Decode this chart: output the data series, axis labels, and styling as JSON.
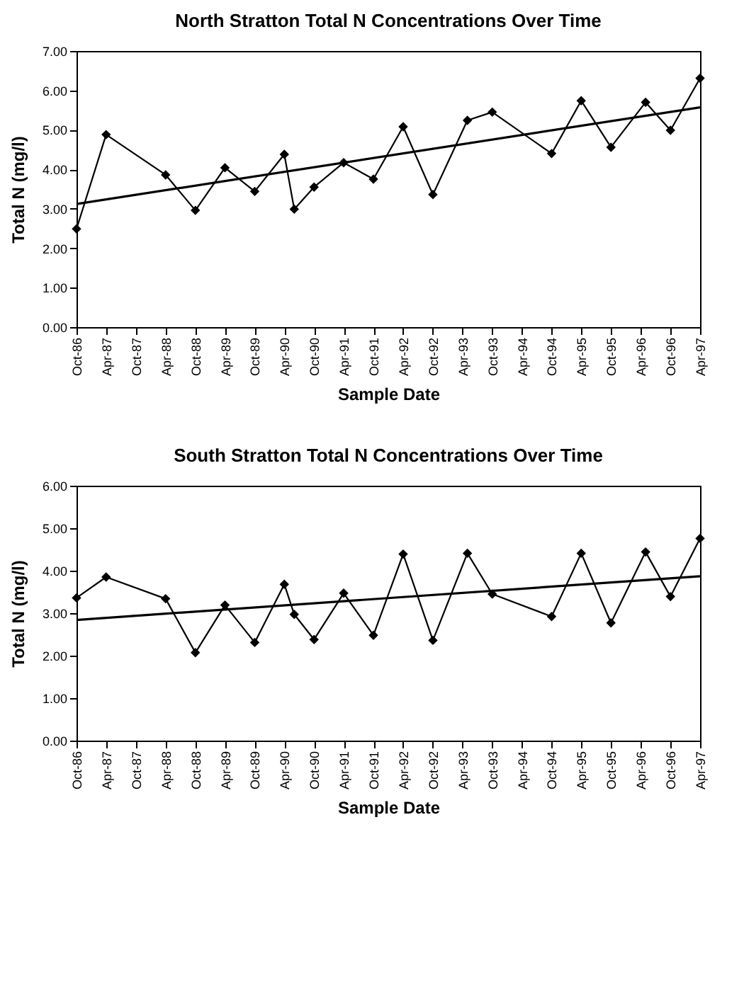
{
  "chart_data": [
    {
      "type": "line",
      "title": "North Stratton Total N Concentrations Over Time",
      "xlabel": "Sample Date",
      "ylabel": "Total N (mg/l)",
      "grid": false,
      "xlim": [
        "1986-10",
        "1997-04"
      ],
      "ylim": [
        0,
        7
      ],
      "yticks": [
        {
          "value": 0,
          "label": "0.00"
        },
        {
          "value": 1,
          "label": "1.00"
        },
        {
          "value": 2,
          "label": "2.00"
        },
        {
          "value": 3,
          "label": "3.00"
        },
        {
          "value": 4,
          "label": "4.00"
        },
        {
          "value": 5,
          "label": "5.00"
        },
        {
          "value": 6,
          "label": "6.00"
        },
        {
          "value": 7,
          "label": "7.00"
        }
      ],
      "xticks": [
        {
          "value": "1986-10",
          "label": "Oct-86"
        },
        {
          "value": "1987-04",
          "label": "Apr-87"
        },
        {
          "value": "1987-10",
          "label": "Oct-87"
        },
        {
          "value": "1988-04",
          "label": "Apr-88"
        },
        {
          "value": "1988-10",
          "label": "Oct-88"
        },
        {
          "value": "1989-04",
          "label": "Apr-89"
        },
        {
          "value": "1989-10",
          "label": "Oct-89"
        },
        {
          "value": "1990-04",
          "label": "Apr-90"
        },
        {
          "value": "1990-10",
          "label": "Oct-90"
        },
        {
          "value": "1991-04",
          "label": "Apr-91"
        },
        {
          "value": "1991-10",
          "label": "Oct-91"
        },
        {
          "value": "1992-04",
          "label": "Apr-92"
        },
        {
          "value": "1992-10",
          "label": "Oct-92"
        },
        {
          "value": "1993-04",
          "label": "Apr-93"
        },
        {
          "value": "1993-10",
          "label": "Oct-93"
        },
        {
          "value": "1994-04",
          "label": "Apr-94"
        },
        {
          "value": "1994-10",
          "label": "Oct-94"
        },
        {
          "value": "1995-04",
          "label": "Apr-95"
        },
        {
          "value": "1995-10",
          "label": "Oct-95"
        },
        {
          "value": "1996-04",
          "label": "Apr-96"
        },
        {
          "value": "1996-10",
          "label": "Oct-96"
        },
        {
          "value": "1997-04",
          "label": "Apr-97"
        }
      ],
      "series": [
        {
          "color": "#000000",
          "marker": "diamond",
          "line_style": "solid",
          "x": [
            "1986-10",
            "1987-04",
            "1988-04",
            "1988-10",
            "1989-04",
            "1989-10",
            "1990-04",
            "1990-06",
            "1990-10",
            "1991-04",
            "1991-10",
            "1992-04",
            "1992-10",
            "1993-05",
            "1993-10",
            "1994-10",
            "1995-04",
            "1995-10",
            "1996-05",
            "1996-10",
            "1997-04"
          ],
          "values": [
            2.49,
            4.88,
            3.86,
            2.96,
            4.04,
            3.44,
            4.38,
            2.99,
            3.55,
            4.17,
            3.75,
            5.08,
            3.36,
            5.24,
            5.45,
            4.4,
            5.74,
            4.56,
            5.7,
            4.99,
            6.31
          ]
        },
        {
          "color": "#000000",
          "marker": "none",
          "line_style": "solid",
          "x": [
            "1986-10",
            "1997-04"
          ],
          "values": [
            3.12,
            5.57
          ]
        }
      ]
    },
    {
      "type": "line",
      "title": "South Stratton Total N Concentrations Over Time",
      "xlabel": "Sample Date",
      "ylabel": "Total N (mg/l)",
      "grid": false,
      "xlim": [
        "1986-10",
        "1997-04"
      ],
      "ylim": [
        0,
        6
      ],
      "yticks": [
        {
          "value": 0,
          "label": "0.00"
        },
        {
          "value": 1,
          "label": "1.00"
        },
        {
          "value": 2,
          "label": "2.00"
        },
        {
          "value": 3,
          "label": "3.00"
        },
        {
          "value": 4,
          "label": "4.00"
        },
        {
          "value": 5,
          "label": "5.00"
        },
        {
          "value": 6,
          "label": "6.00"
        }
      ],
      "xticks": [
        {
          "value": "1986-10",
          "label": "Oct-86"
        },
        {
          "value": "1987-04",
          "label": "Apr-87"
        },
        {
          "value": "1987-10",
          "label": "Oct-87"
        },
        {
          "value": "1988-04",
          "label": "Apr-88"
        },
        {
          "value": "1988-10",
          "label": "Oct-88"
        },
        {
          "value": "1989-04",
          "label": "Apr-89"
        },
        {
          "value": "1989-10",
          "label": "Oct-89"
        },
        {
          "value": "1990-04",
          "label": "Apr-90"
        },
        {
          "value": "1990-10",
          "label": "Oct-90"
        },
        {
          "value": "1991-04",
          "label": "Apr-91"
        },
        {
          "value": "1991-10",
          "label": "Oct-91"
        },
        {
          "value": "1992-04",
          "label": "Apr-92"
        },
        {
          "value": "1992-10",
          "label": "Oct-92"
        },
        {
          "value": "1993-04",
          "label": "Apr-93"
        },
        {
          "value": "1993-10",
          "label": "Oct-93"
        },
        {
          "value": "1994-04",
          "label": "Apr-94"
        },
        {
          "value": "1994-10",
          "label": "Oct-94"
        },
        {
          "value": "1995-04",
          "label": "Apr-95"
        },
        {
          "value": "1995-10",
          "label": "Oct-95"
        },
        {
          "value": "1996-04",
          "label": "Apr-96"
        },
        {
          "value": "1996-10",
          "label": "Oct-96"
        },
        {
          "value": "1997-04",
          "label": "Apr-97"
        }
      ],
      "series": [
        {
          "color": "#000000",
          "marker": "diamond",
          "line_style": "solid",
          "x": [
            "1986-10",
            "1987-04",
            "1988-04",
            "1988-10",
            "1989-04",
            "1989-10",
            "1990-04",
            "1990-06",
            "1990-10",
            "1991-04",
            "1991-10",
            "1992-04",
            "1992-10",
            "1993-05",
            "1993-10",
            "1994-10",
            "1995-04",
            "1995-10",
            "1996-05",
            "1996-10",
            "1997-04"
          ],
          "values": [
            3.36,
            3.85,
            3.34,
            2.07,
            3.19,
            2.31,
            3.68,
            2.97,
            2.38,
            3.47,
            2.48,
            4.39,
            2.36,
            4.41,
            3.45,
            2.92,
            4.41,
            2.77,
            4.44,
            3.39,
            4.76
          ]
        },
        {
          "color": "#000000",
          "marker": "none",
          "line_style": "solid",
          "x": [
            "1986-10",
            "1997-04"
          ],
          "values": [
            2.84,
            3.87
          ]
        }
      ]
    }
  ]
}
